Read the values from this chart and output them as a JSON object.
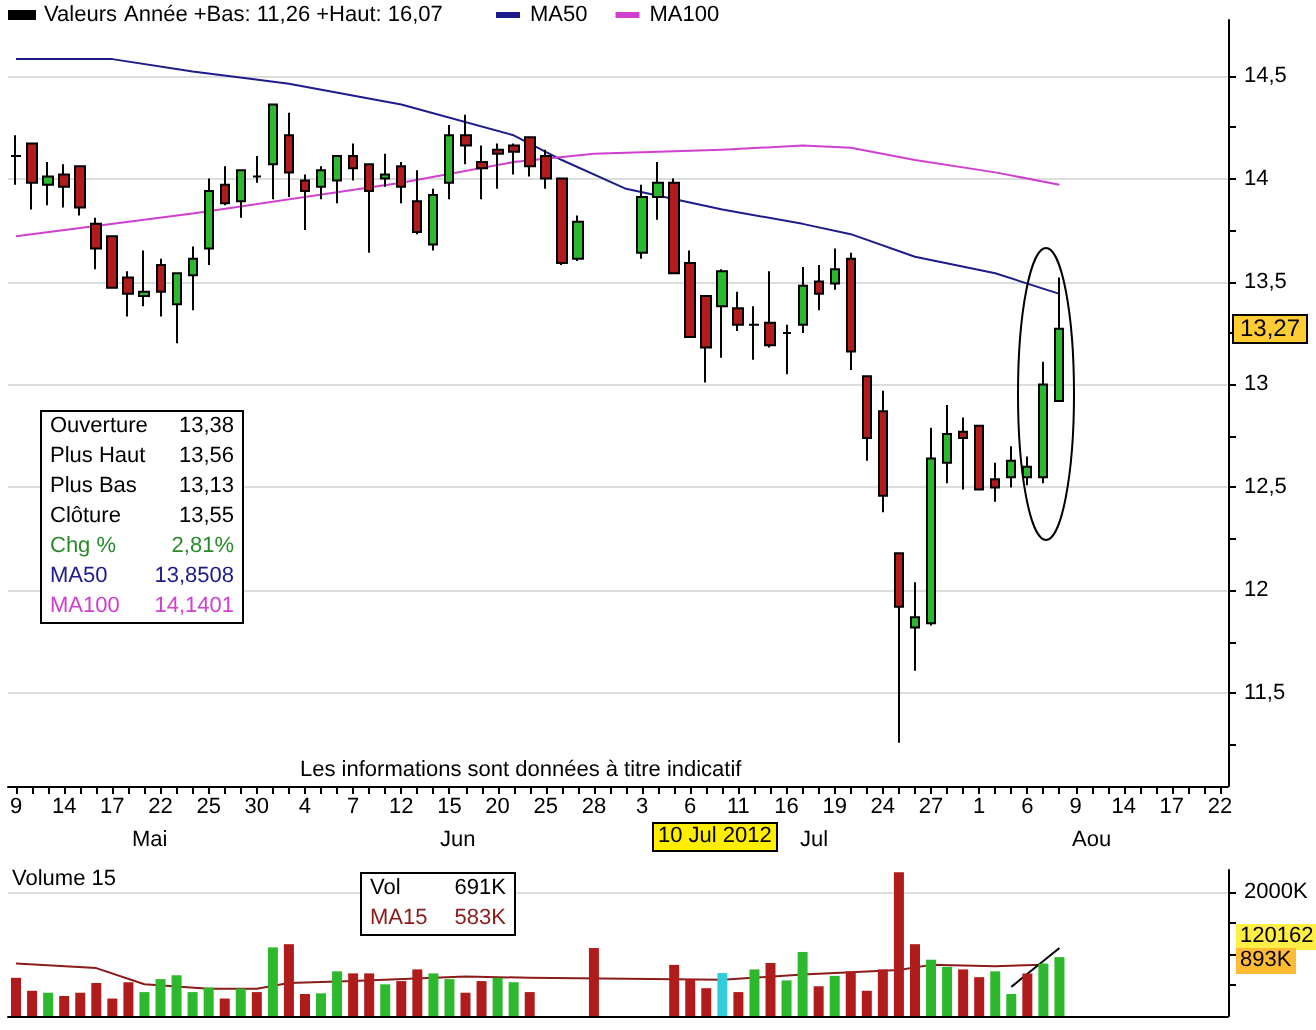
{
  "chart_data": [
    {
      "type": "candlestick",
      "subtitle": "Année +Bas: 11,26 +Haut: 16,07",
      "categories": [
        "9",
        null,
        null,
        "14",
        null,
        null,
        "17",
        null,
        null,
        "22",
        null,
        null,
        "25",
        null,
        null,
        "30",
        null,
        null,
        "4",
        null,
        null,
        "7",
        null,
        null,
        "12",
        null,
        null,
        "15",
        null,
        null,
        "20",
        null,
        null,
        "25",
        null,
        null,
        "28",
        null,
        null,
        "3",
        null,
        null,
        "6",
        null,
        null,
        "11",
        null,
        null,
        "16",
        null,
        null,
        "19",
        null,
        null,
        "24",
        null,
        null,
        "27",
        null,
        null,
        "1",
        null,
        null,
        "6",
        null,
        null,
        "9",
        null,
        null,
        "14",
        null,
        null,
        "17",
        null,
        null,
        "22"
      ],
      "series": [
        {
          "name": "Valeurs",
          "color": "#000000",
          "ohlc": [
            [
              14.11,
              14.21,
              13.97,
              14.11
            ],
            [
              14.17,
              14.17,
              13.85,
              13.98
            ],
            [
              13.97,
              14.08,
              13.87,
              14.01
            ],
            [
              14.02,
              14.07,
              13.86,
              13.96
            ],
            [
              14.06,
              14.06,
              13.82,
              13.86
            ],
            [
              13.78,
              13.81,
              13.56,
              13.66
            ],
            [
              13.72,
              13.72,
              13.47,
              13.47
            ],
            [
              13.52,
              13.55,
              13.33,
              13.44
            ],
            [
              13.43,
              13.65,
              13.38,
              13.45
            ],
            [
              13.58,
              13.61,
              13.33,
              13.45
            ],
            [
              13.39,
              13.54,
              13.2,
              13.54
            ],
            [
              13.53,
              13.67,
              13.36,
              13.61
            ],
            [
              13.66,
              14.0,
              13.58,
              13.94
            ],
            [
              13.97,
              14.06,
              13.87,
              13.88
            ],
            [
              13.89,
              14.04,
              13.81,
              14.04
            ],
            [
              14.01,
              14.11,
              13.98,
              14.01
            ],
            [
              14.07,
              14.36,
              13.9,
              14.36
            ],
            [
              14.21,
              14.32,
              13.91,
              14.03
            ],
            [
              13.99,
              14.02,
              13.75,
              13.94
            ],
            [
              13.96,
              14.06,
              13.9,
              14.04
            ],
            [
              13.99,
              14.11,
              13.88,
              14.11
            ],
            [
              14.11,
              14.17,
              13.99,
              14.05
            ],
            [
              14.07,
              14.07,
              13.64,
              13.94
            ],
            [
              14.0,
              14.12,
              13.96,
              14.02
            ],
            [
              14.06,
              14.08,
              13.88,
              13.96
            ],
            [
              13.89,
              14.04,
              13.73,
              13.74
            ],
            [
              13.68,
              13.95,
              13.65,
              13.92
            ],
            [
              13.98,
              14.26,
              13.9,
              14.21
            ],
            [
              14.21,
              14.31,
              14.07,
              14.16
            ],
            [
              14.08,
              14.16,
              13.9,
              14.05
            ],
            [
              14.14,
              14.17,
              13.95,
              14.12
            ],
            [
              14.16,
              14.17,
              14.02,
              14.13
            ],
            [
              14.2,
              14.2,
              14.01,
              14.06
            ],
            [
              14.11,
              14.14,
              13.95,
              14.0
            ],
            [
              14.0,
              14.0,
              13.58,
              13.59
            ],
            [
              13.61,
              13.82,
              13.6,
              13.79
            ],
            null,
            null,
            null,
            [
              13.64,
              13.97,
              13.61,
              13.91
            ],
            [
              13.91,
              14.08,
              13.8,
              13.98
            ],
            [
              13.98,
              14.0,
              13.54,
              13.54
            ],
            [
              13.59,
              13.65,
              13.23,
              13.23
            ],
            [
              13.43,
              13.43,
              13.01,
              13.18
            ],
            [
              13.38,
              13.56,
              13.13,
              13.55
            ],
            [
              13.37,
              13.45,
              13.26,
              13.29
            ],
            [
              13.29,
              13.38,
              13.12,
              13.29
            ],
            [
              13.3,
              13.55,
              13.18,
              13.19
            ],
            [
              13.25,
              13.29,
              13.05,
              13.25
            ],
            [
              13.29,
              13.57,
              13.25,
              13.48
            ],
            [
              13.5,
              13.58,
              13.36,
              13.44
            ],
            [
              13.49,
              13.66,
              13.46,
              13.56
            ],
            [
              13.61,
              13.64,
              13.07,
              13.16
            ],
            [
              13.04,
              13.04,
              12.63,
              12.74
            ],
            [
              12.87,
              12.97,
              12.38,
              12.46
            ],
            [
              12.18,
              12.18,
              11.26,
              11.92
            ],
            [
              11.82,
              12.04,
              11.61,
              11.87
            ],
            [
              11.84,
              12.79,
              11.83,
              12.64
            ],
            [
              12.62,
              12.9,
              12.52,
              12.76
            ],
            [
              12.77,
              12.84,
              12.49,
              12.74
            ],
            [
              12.8,
              12.8,
              12.49,
              12.49
            ],
            [
              12.54,
              12.62,
              12.43,
              12.5
            ],
            [
              12.55,
              12.7,
              12.5,
              12.63
            ],
            [
              12.55,
              12.65,
              12.51,
              12.6
            ],
            [
              12.55,
              13.11,
              12.52,
              13.0
            ],
            [
              12.92,
              13.52,
              12.92,
              13.27
            ],
            null,
            null,
            null,
            null,
            null,
            null,
            null,
            null,
            null,
            null
          ],
          "colors": [
            "#000000",
            "#b01c1c",
            "#2db82d",
            "#b01c1c",
            "#b01c1c",
            "#b01c1c",
            "#b01c1c",
            "#b01c1c",
            "#2db82d",
            "#b01c1c",
            "#2db82d",
            "#2db82d",
            "#2db82d",
            "#b01c1c",
            "#2db82d",
            "#000000",
            "#2db82d",
            "#b01c1c",
            "#b01c1c",
            "#2db82d",
            "#2db82d",
            "#b01c1c",
            "#b01c1c",
            "#2db82d",
            "#b01c1c",
            "#b01c1c",
            "#2db82d",
            "#2db82d",
            "#b01c1c",
            "#b01c1c",
            "#b01c1c",
            "#b01c1c",
            "#b01c1c",
            "#b01c1c",
            "#b01c1c",
            "#2db82d",
            null,
            null,
            null,
            "#2db82d",
            "#2db82d",
            "#b01c1c",
            "#b01c1c",
            "#b01c1c",
            "#2db82d",
            "#b01c1c",
            "#000000",
            "#b01c1c",
            "#000000",
            "#2db82d",
            "#b01c1c",
            "#2db82d",
            "#b01c1c",
            "#b01c1c",
            "#b01c1c",
            "#b01c1c",
            "#2db82d",
            "#2db82d",
            "#2db82d",
            "#b01c1c",
            "#b01c1c",
            "#b01c1c",
            "#2db82d",
            "#2db82d",
            "#2db82d",
            "#2db82d",
            null,
            null,
            null,
            null,
            null,
            null,
            null,
            null,
            null,
            null
          ]
        },
        {
          "name": "MA50",
          "type": "line",
          "color": "#1c1c8c",
          "values": [
            14.58,
            null,
            null,
            null,
            null,
            null,
            14.58,
            null,
            null,
            null,
            null,
            14.52,
            null,
            null,
            null,
            null,
            null,
            14.46,
            null,
            null,
            null,
            null,
            null,
            null,
            14.36,
            null,
            null,
            null,
            null,
            null,
            null,
            14.21,
            null,
            null,
            14.09,
            null,
            null,
            null,
            13.95,
            null,
            null,
            null,
            null,
            null,
            13.85,
            null,
            null,
            null,
            null,
            13.78,
            null,
            null,
            13.73,
            null,
            null,
            null,
            13.62,
            null,
            null,
            null,
            null,
            13.54,
            null,
            null,
            null,
            13.44,
            null,
            null,
            null,
            null,
            null,
            null,
            null,
            null,
            null,
            null
          ]
        },
        {
          "name": "MA100",
          "type": "line",
          "color": "#d040d0",
          "values": [
            13.72,
            null,
            null,
            null,
            null,
            null,
            null,
            null,
            null,
            null,
            null,
            13.83,
            null,
            null,
            null,
            null,
            null,
            null,
            null,
            null,
            null,
            null,
            null,
            null,
            13.98,
            null,
            null,
            null,
            null,
            null,
            null,
            14.08,
            null,
            null,
            null,
            null,
            14.12,
            null,
            null,
            null,
            null,
            null,
            null,
            null,
            14.14,
            null,
            null,
            null,
            null,
            14.16,
            null,
            null,
            14.15,
            null,
            null,
            null,
            14.09,
            null,
            null,
            null,
            null,
            14.03,
            null,
            null,
            null,
            13.97,
            null,
            null,
            null,
            null,
            null,
            null,
            null,
            null,
            null,
            null
          ]
        }
      ],
      "ylim": [
        11.05,
        14.77
      ],
      "yticks": [
        {
          "value": 11.25,
          "label": null
        },
        {
          "value": 11.5,
          "label": "11,5"
        },
        {
          "value": 11.75,
          "label": null
        },
        {
          "value": 12,
          "label": "12"
        },
        {
          "value": 12.25,
          "label": null
        },
        {
          "value": 12.5,
          "label": "12,5"
        },
        {
          "value": 12.75,
          "label": null
        },
        {
          "value": 13,
          "label": "13"
        },
        {
          "value": 13.25,
          "label": null
        },
        {
          "value": 13.5,
          "label": "13,5"
        },
        {
          "value": 13.75,
          "label": null
        },
        {
          "value": 14,
          "label": "14"
        },
        {
          "value": 14.25,
          "label": null
        },
        {
          "value": 14.5,
          "label": "14,5"
        }
      ],
      "grid": "y",
      "legend": "top left",
      "annotations": [
        "Mai",
        "Jun",
        "Jul",
        "Aou",
        "10 Jul 2012",
        "Les informations sont données à titre indicatif",
        "Ouverture",
        "13,38",
        "Plus Haut",
        "13,56",
        "Plus Bas",
        "13,13",
        "Clôture",
        "13,55",
        "Chg %",
        "2,81%",
        "MA50",
        "13,8508",
        "MA100",
        "14,1401",
        {
          "text": "13,27",
          "y": 13.27
        }
      ]
    },
    {
      "type": "bar",
      "title": "Volume 15",
      "categories": [
        null,
        null,
        null,
        null,
        null,
        null,
        null,
        null,
        null,
        null,
        null,
        null,
        null,
        null,
        null,
        null,
        null,
        null,
        null,
        null,
        null,
        null,
        null,
        null,
        null,
        null,
        null,
        null,
        null,
        null,
        null,
        null,
        null,
        null,
        null,
        null,
        null,
        null,
        null,
        null,
        null,
        null,
        null,
        null,
        null,
        null,
        null,
        null,
        null,
        null,
        null,
        null,
        null,
        null,
        null,
        null,
        null,
        null,
        null,
        null,
        null,
        null,
        null,
        null,
        null,
        null,
        null,
        null,
        null,
        null,
        null,
        null,
        null,
        null,
        null,
        null
      ],
      "series": [
        {
          "values": [
            615,
            406,
            375,
            323,
            375,
            531,
            281,
            542,
            385,
            594,
            656,
            385,
            458,
            281,
            442,
            385,
            1104,
            1156,
            354,
            365,
            719,
            686,
            686,
            510,
            562,
            750,
            686,
            594,
            375,
            562,
            615,
            542,
            385,
            null,
            null,
            null,
            1094,
            null,
            null,
            null,
            null,
            823,
            594,
            448,
            691,
            385,
            750,
            854,
            573,
            1031,
            479,
            646,
            719,
            406,
            750,
            2313,
            1156,
            906,
            792,
            750,
            625,
            719,
            354,
            686,
            844,
            948,
            null,
            null,
            null,
            null,
            null,
            null,
            null,
            null,
            null,
            null
          ],
          "colors": [
            "#b01c1c",
            "#b01c1c",
            "#2db82d",
            "#b01c1c",
            "#b01c1c",
            "#b01c1c",
            "#b01c1c",
            "#b01c1c",
            "#2db82d",
            "#2db82d",
            "#2db82d",
            "#2db82d",
            "#2db82d",
            "#b01c1c",
            "#2db82d",
            "#b01c1c",
            "#2db82d",
            "#b01c1c",
            "#b01c1c",
            "#2db82d",
            "#2db82d",
            "#b01c1c",
            "#b01c1c",
            "#2db82d",
            "#b01c1c",
            "#b01c1c",
            "#2db82d",
            "#2db82d",
            "#b01c1c",
            "#b01c1c",
            "#2db82d",
            "#2db82d",
            "#b01c1c",
            null,
            null,
            null,
            "#b01c1c",
            null,
            null,
            null,
            null,
            "#b01c1c",
            "#b01c1c",
            "#b01c1c",
            "#33ccdd",
            "#b01c1c",
            "#2db82d",
            "#b01c1c",
            "#2db82d",
            "#2db82d",
            "#b01c1c",
            "#2db82d",
            "#b01c1c",
            "#b01c1c",
            "#b01c1c",
            "#b01c1c",
            "#b01c1c",
            "#2db82d",
            "#2db82d",
            "#b01c1c",
            "#b01c1c",
            "#2db82d",
            "#2db82d",
            "#b01c1c",
            "#2db82d",
            "#2db82d",
            null,
            null,
            null,
            null,
            null,
            null,
            null,
            null,
            null,
            null
          ]
        },
        {
          "type": "line",
          "color": "#8b1a1a",
          "values": [
            844,
            null,
            null,
            null,
            null,
            771,
            null,
            null,
            510,
            null,
            null,
            null,
            438,
            null,
            null,
            438,
            null,
            531,
            null,
            null,
            null,
            563,
            null,
            null,
            null,
            null,
            null,
            null,
            635,
            null,
            null,
            null,
            615,
            null,
            null,
            null,
            null,
            null,
            null,
            null,
            null,
            null,
            null,
            null,
            583,
            null,
            null,
            null,
            null,
            667,
            null,
            null,
            null,
            null,
            null,
            740,
            null,
            823,
            null,
            null,
            null,
            802,
            null,
            null,
            823,
            null,
            null,
            null,
            null,
            null,
            null,
            null,
            null,
            null,
            null,
            null
          ]
        },
        {
          "type": "line",
          "color": "#000000",
          "values": [
            null,
            null,
            null,
            null,
            null,
            null,
            null,
            null,
            null,
            null,
            null,
            null,
            null,
            null,
            null,
            null,
            null,
            null,
            null,
            null,
            null,
            null,
            null,
            null,
            null,
            null,
            null,
            null,
            null,
            null,
            null,
            null,
            null,
            null,
            null,
            null,
            null,
            null,
            null,
            null,
            null,
            null,
            null,
            null,
            null,
            null,
            null,
            null,
            null,
            null,
            null,
            null,
            null,
            null,
            null,
            null,
            null,
            null,
            null,
            null,
            null,
            null,
            469,
            null,
            null,
            1094,
            null,
            null,
            null,
            null,
            null,
            null,
            null,
            null,
            null,
            null
          ]
        }
      ],
      "ylim": [
        0,
        2350
      ],
      "yticks": [
        {
          "value": 500,
          "label": null
        },
        {
          "value": 1000,
          "label": null
        },
        {
          "value": 1500,
          "label": null
        },
        {
          "value": 2000,
          "label": "2000K"
        }
      ],
      "grid": "y",
      "tick_labels": "y",
      "annotations": [
        "Vol",
        "691K",
        "MA15",
        "583K",
        "120162",
        "893K"
      ]
    }
  ]
}
